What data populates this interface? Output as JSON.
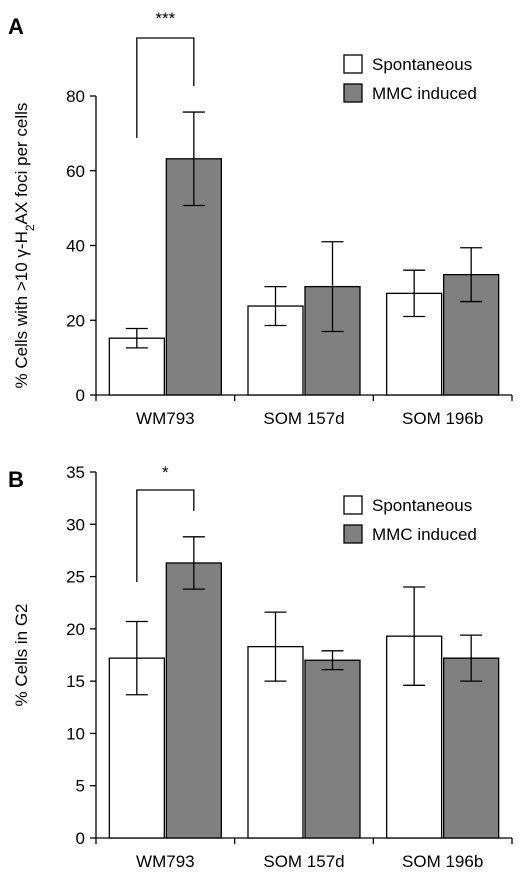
{
  "chart_data": [
    {
      "type": "bar",
      "panel": "A",
      "ylabel": "% Cells with >10 γ-H2AX foci per cells",
      "ylabel_parts": [
        "% Cells with >10 γ-H",
        "2",
        "AX foci per cells"
      ],
      "ylim": [
        0,
        80
      ],
      "yticks": [
        0,
        20,
        40,
        60,
        80
      ],
      "categories": [
        "WM793",
        "SOM 157d",
        "SOM 196b"
      ],
      "series": [
        {
          "name": "Spontaneous",
          "color": "#ffffff",
          "values": [
            15.2,
            23.8,
            27.2
          ],
          "errors": [
            2.6,
            5.2,
            6.2
          ]
        },
        {
          "name": "MMC induced",
          "color": "#808080",
          "values": [
            63.2,
            29.0,
            32.2
          ],
          "errors": [
            12.5,
            12.0,
            7.2
          ]
        }
      ],
      "significance": [
        {
          "category": "WM793",
          "label": "***"
        }
      ],
      "legend_position": "top-right",
      "grid": false
    },
    {
      "type": "bar",
      "panel": "B",
      "ylabel": "% Cells in G2",
      "ylim": [
        0,
        35
      ],
      "yticks": [
        0,
        5,
        10,
        15,
        20,
        25,
        30,
        35
      ],
      "categories": [
        "WM793",
        "SOM 157d",
        "SOM 196b"
      ],
      "series": [
        {
          "name": "Spontaneous",
          "color": "#ffffff",
          "values": [
            17.2,
            18.3,
            19.3
          ],
          "errors": [
            3.5,
            3.3,
            4.7
          ]
        },
        {
          "name": "MMC induced",
          "color": "#808080",
          "values": [
            26.3,
            17.0,
            17.2
          ],
          "errors": [
            2.5,
            0.9,
            2.2
          ]
        }
      ],
      "significance": [
        {
          "category": "WM793",
          "label": "*"
        }
      ],
      "legend_position": "top-right",
      "grid": false
    }
  ]
}
